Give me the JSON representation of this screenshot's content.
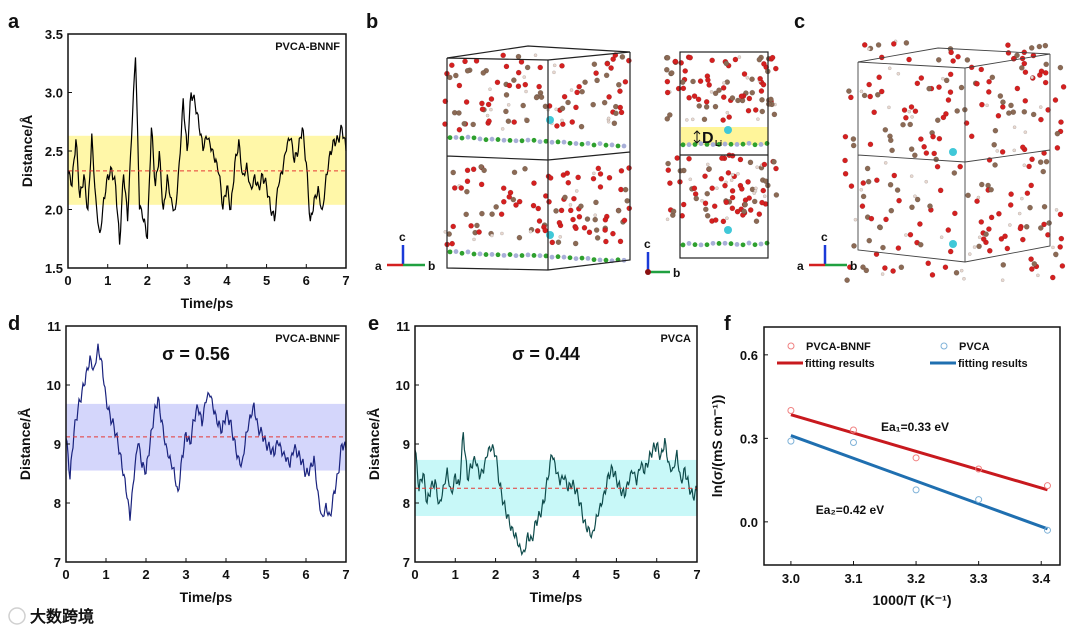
{
  "panel_labels": {
    "a": "a",
    "b": "b",
    "c": "c",
    "d": "d",
    "e": "e",
    "f": "f"
  },
  "structures": {
    "axis_a": "a",
    "axis_b": "b",
    "axis_c": "c",
    "gap_label": "D",
    "gap_subscript": "Li",
    "colors": {
      "O": "#d42020",
      "C": "#8b6a55",
      "H": "#e8d8d0",
      "B": "#2ea02e",
      "N": "#a8aed8",
      "Li": "#40c8d8",
      "band": "#fff59a"
    }
  },
  "watermark": "大数跨境",
  "chart_data": [
    {
      "id": "a",
      "type": "line",
      "title": "PVCA-BNNF",
      "xlabel": "Time/ps",
      "ylabel": "Distance/Å",
      "xlim": [
        0,
        7
      ],
      "ylim": [
        1.5,
        3.5
      ],
      "xticks": [
        0,
        1,
        2,
        3,
        4,
        5,
        6,
        7
      ],
      "yticks": [
        1.5,
        2.0,
        2.5,
        3.0,
        3.5
      ],
      "mean": 2.33,
      "band": [
        2.04,
        2.63
      ],
      "band_color": "#fff7a8",
      "line_color": "#000000",
      "values": [
        2.3,
        2.2,
        2.6,
        2.1,
        2.3,
        2.0,
        2.65,
        2.1,
        1.8,
        2.1,
        2.3,
        2.35,
        2.2,
        1.7,
        2.3,
        1.9,
        2.6,
        3.3,
        2.0,
        1.9,
        1.75,
        2.7,
        2.2,
        2.5,
        2.0,
        2.3,
        2.1,
        2.0,
        2.4,
        2.95,
        2.5,
        3.0,
        2.9,
        2.7,
        2.5,
        2.6,
        2.5,
        2.4,
        2.3,
        2.0,
        2.2,
        2.0,
        2.4,
        2.6,
        2.3,
        2.4,
        2.2,
        2.3,
        2.2,
        2.3,
        2.2,
        2.0,
        1.9,
        2.2,
        2.3,
        2.5,
        2.6,
        2.4,
        2.5,
        2.7,
        2.4,
        1.9,
        2.1,
        2.2,
        2.0,
        2.3,
        2.5,
        2.6,
        2.6,
        2.7,
        2.5
      ]
    },
    {
      "id": "d",
      "type": "line",
      "title": "PVCA-BNNF",
      "annotation": "σ = 0.56",
      "xlabel": "Time/ps",
      "ylabel": "Distance/Å",
      "xlim": [
        0,
        7
      ],
      "ylim": [
        7,
        11
      ],
      "xticks": [
        0,
        1,
        2,
        3,
        4,
        5,
        6,
        7
      ],
      "yticks": [
        7,
        8,
        9,
        10,
        11
      ],
      "mean": 9.12,
      "band": [
        8.55,
        9.68
      ],
      "band_color": "#d4d6fb",
      "line_color": "#1a237e",
      "values": [
        9.1,
        8.4,
        9.2,
        9.6,
        9.9,
        10.2,
        10.5,
        10.3,
        10.7,
        10.4,
        9.8,
        9.5,
        9.3,
        9.0,
        8.6,
        8.2,
        7.7,
        8.4,
        9.0,
        8.6,
        8.5,
        9.0,
        9.5,
        9.8,
        9.4,
        9.0,
        8.8,
        8.6,
        8.2,
        8.8,
        9.2,
        9.0,
        9.4,
        9.6,
        9.3,
        9.7,
        9.8,
        9.5,
        9.3,
        9.2,
        9.5,
        9.4,
        9.1,
        8.8,
        8.7,
        9.2,
        9.5,
        9.7,
        9.3,
        9.2,
        9.0,
        8.9,
        8.8,
        9.0,
        8.8,
        8.7,
        8.6,
        8.9,
        8.8,
        8.7,
        8.5,
        8.6,
        8.8,
        8.2,
        7.8,
        8.0,
        7.8,
        8.2,
        8.5,
        9.0,
        8.9
      ]
    },
    {
      "id": "e",
      "type": "line",
      "title": "PVCA",
      "annotation": "σ = 0.44",
      "xlabel": "Time/ps",
      "ylabel": "Distance/Å",
      "xlim": [
        0,
        7
      ],
      "ylim": [
        7,
        11
      ],
      "xticks": [
        0,
        1,
        2,
        3,
        4,
        5,
        6,
        7
      ],
      "yticks": [
        7,
        8,
        9,
        10,
        11
      ],
      "mean": 8.25,
      "band": [
        7.78,
        8.73
      ],
      "band_color": "#c8f8f8",
      "line_color": "#0f4c4c",
      "values": [
        8.9,
        8.2,
        8.5,
        8.0,
        8.3,
        8.4,
        8.0,
        8.3,
        8.6,
        8.2,
        8.5,
        8.3,
        9.2,
        8.4,
        8.6,
        8.7,
        8.4,
        8.5,
        8.8,
        8.9,
        8.8,
        8.3,
        8.0,
        7.8,
        7.6,
        7.5,
        7.3,
        7.2,
        7.5,
        7.4,
        7.7,
        7.8,
        8.0,
        8.4,
        8.8,
        8.5,
        8.3,
        8.4,
        8.2,
        8.3,
        8.2,
        8.0,
        7.7,
        7.6,
        7.5,
        7.8,
        8.0,
        8.2,
        8.5,
        8.6,
        8.4,
        8.2,
        8.1,
        8.3,
        8.5,
        8.3,
        8.6,
        8.5,
        8.7,
        8.9,
        9.0,
        8.8,
        9.1,
        8.7,
        8.6,
        8.9,
        8.4,
        8.6,
        8.3,
        8.1,
        8.2
      ]
    },
    {
      "id": "f",
      "type": "scatter",
      "xlabel": "1000/T (K⁻¹)",
      "ylabel": "ln(σ/(mS cm⁻¹))",
      "xlim": [
        2.957,
        3.43
      ],
      "ylim": [
        -0.155,
        0.7
      ],
      "xticks": [
        3.0,
        3.1,
        3.2,
        3.3,
        3.4
      ],
      "xtick_labels": [
        "3.0",
        "3.1",
        "3.2",
        "3.3",
        "3.4"
      ],
      "yticks": [
        0.0,
        0.3,
        0.6
      ],
      "ytick_labels": [
        "0.0",
        "0.3",
        "0.6"
      ],
      "legend_placement": "top",
      "series": [
        {
          "name": "PVCA-BNNF",
          "fit_name": "fitting results",
          "color": "#f08080",
          "fit_color": "#c8191e",
          "x": [
            3.0,
            3.1,
            3.2,
            3.3,
            3.41
          ],
          "y": [
            0.4,
            0.33,
            0.23,
            0.19,
            0.13
          ],
          "fit": {
            "x": [
              3.0,
              3.41
            ],
            "y": [
              0.385,
              0.115
            ]
          },
          "annotation": "Ea₁=0.33 eV"
        },
        {
          "name": "PVCA",
          "fit_name": "fitting results",
          "color": "#7fb2d8",
          "fit_color": "#1f6fb0",
          "x": [
            3.0,
            3.1,
            3.2,
            3.3,
            3.41
          ],
          "y": [
            0.29,
            0.285,
            0.115,
            0.08,
            -0.03
          ],
          "fit": {
            "x": [
              3.0,
              3.41
            ],
            "y": [
              0.31,
              -0.025
            ]
          },
          "annotation": "Ea₂=0.42 eV"
        }
      ]
    }
  ]
}
